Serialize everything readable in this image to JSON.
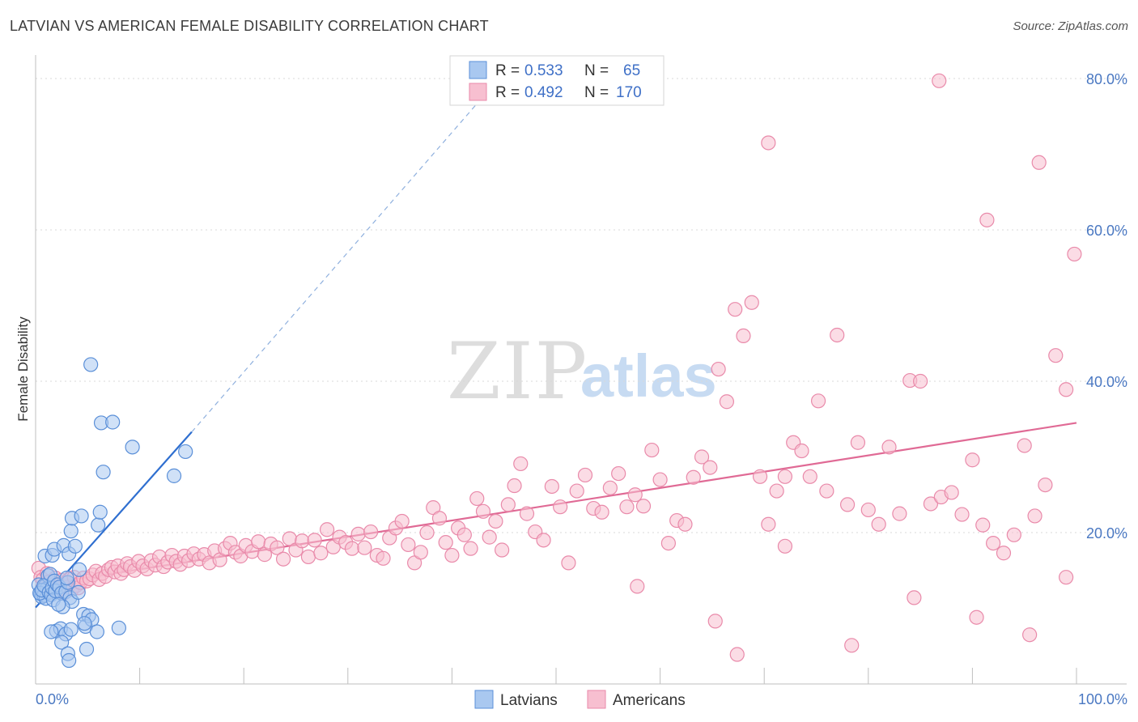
{
  "header": {
    "title": "LATVIAN VS AMERICAN FEMALE DISABILITY CORRELATION CHART",
    "source": "Source: ZipAtlas.com"
  },
  "watermark": {
    "zip": "ZIP",
    "atlas": "atlas"
  },
  "colors": {
    "latvians_fill": "#a9c8f0",
    "latvians_stroke": "#5a8fd8",
    "latvians_line": "#2f6fd0",
    "americans_fill": "#f7bfd0",
    "americans_stroke": "#e98aaa",
    "americans_line": "#e06a95",
    "tick_label": "#4a78c2",
    "grid": "#d8d8d8"
  },
  "legend": {
    "r_label": "R =",
    "n_label": "N =",
    "rows": [
      {
        "r": "0.533",
        "n": "65"
      },
      {
        "r": "0.492",
        "n": "170"
      }
    ]
  },
  "bottom_legend": [
    "Latvians",
    "Americans"
  ],
  "chart_data": {
    "type": "scatter",
    "title": "LATVIAN VS AMERICAN FEMALE DISABILITY CORRELATION CHART",
    "xlabel": "",
    "ylabel": "Female Disability",
    "xlim": [
      0,
      100
    ],
    "ylim": [
      0,
      80
    ],
    "x_tick_labels": [
      "0.0%",
      "100.0%"
    ],
    "y_tick_labels": [
      "20.0%",
      "40.0%",
      "60.0%",
      "80.0%"
    ],
    "y_ticks": [
      20,
      40,
      60,
      80
    ],
    "grid": true,
    "legend_position": "top-center",
    "series": [
      {
        "name": "Latvians",
        "r": 0.533,
        "n": 65,
        "trend": {
          "x": [
            0,
            15
          ],
          "y": [
            10.1,
            33.3
          ],
          "dashed_to": [
            44.5,
            80
          ]
        },
        "points": [
          [
            0.3,
            13.1
          ],
          [
            0.5,
            11.9
          ],
          [
            0.6,
            11.5
          ],
          [
            0.7,
            12.3
          ],
          [
            0.8,
            11.7
          ],
          [
            0.9,
            12.9
          ],
          [
            1.0,
            11.3
          ],
          [
            1.1,
            12.6
          ],
          [
            0.9,
            16.9
          ],
          [
            1.2,
            14.3
          ],
          [
            0.4,
            12.0
          ],
          [
            0.6,
            12.4
          ],
          [
            0.8,
            13.0
          ],
          [
            1.3,
            12.1
          ],
          [
            1.5,
            11.8
          ],
          [
            1.6,
            12.7
          ],
          [
            1.4,
            14.5
          ],
          [
            1.7,
            11.1
          ],
          [
            1.8,
            13.6
          ],
          [
            1.9,
            12.3
          ],
          [
            1.6,
            17.0
          ],
          [
            1.8,
            17.8
          ],
          [
            2.1,
            13.1
          ],
          [
            2.3,
            12.8
          ],
          [
            2.5,
            12.0
          ],
          [
            2.7,
            18.3
          ],
          [
            2.9,
            12.2
          ],
          [
            3.1,
            13.4
          ],
          [
            3.3,
            11.4
          ],
          [
            3.5,
            10.9
          ],
          [
            3.0,
            14.0
          ],
          [
            2.6,
            10.2
          ],
          [
            2.2,
            10.5
          ],
          [
            3.2,
            17.2
          ],
          [
            3.4,
            20.2
          ],
          [
            3.5,
            21.9
          ],
          [
            3.8,
            18.2
          ],
          [
            4.1,
            12.1
          ],
          [
            4.4,
            22.2
          ],
          [
            4.2,
            15.1
          ],
          [
            4.6,
            9.2
          ],
          [
            4.8,
            7.6
          ],
          [
            5.1,
            9.0
          ],
          [
            5.4,
            8.5
          ],
          [
            6.0,
            21.0
          ],
          [
            6.2,
            22.7
          ],
          [
            5.9,
            6.9
          ],
          [
            5.3,
            42.2
          ],
          [
            6.3,
            34.5
          ],
          [
            7.4,
            34.6
          ],
          [
            6.5,
            28.0
          ],
          [
            9.3,
            31.3
          ],
          [
            13.3,
            27.5
          ],
          [
            14.4,
            30.7
          ],
          [
            8.0,
            7.4
          ],
          [
            4.9,
            4.6
          ],
          [
            4.7,
            8.0
          ],
          [
            2.0,
            7.0
          ],
          [
            2.4,
            7.3
          ],
          [
            1.5,
            6.9
          ],
          [
            2.9,
            6.6
          ],
          [
            2.5,
            5.5
          ],
          [
            3.1,
            4.0
          ],
          [
            3.2,
            3.1
          ],
          [
            3.4,
            7.2
          ]
        ]
      },
      {
        "name": "Americans",
        "r": 0.492,
        "n": 170,
        "trend": {
          "x": [
            0,
            100
          ],
          "y": [
            13.0,
            34.5
          ]
        },
        "points": [
          [
            0.3,
            15.3
          ],
          [
            0.5,
            14.1
          ],
          [
            0.7,
            13.8
          ],
          [
            0.9,
            12.9
          ],
          [
            1.1,
            14.6
          ],
          [
            1.3,
            13.5
          ],
          [
            1.5,
            13.1
          ],
          [
            1.7,
            12.6
          ],
          [
            1.9,
            14.0
          ],
          [
            2.1,
            12.3
          ],
          [
            2.3,
            13.2
          ],
          [
            2.5,
            13.7
          ],
          [
            2.7,
            12.0
          ],
          [
            2.9,
            13.4
          ],
          [
            3.1,
            12.8
          ],
          [
            3.3,
            13.9
          ],
          [
            3.5,
            12.5
          ],
          [
            3.7,
            14.1
          ],
          [
            3.9,
            13.0
          ],
          [
            4.1,
            12.7
          ],
          [
            4.3,
            13.4
          ],
          [
            4.6,
            14.0
          ],
          [
            4.9,
            13.6
          ],
          [
            5.2,
            13.9
          ],
          [
            5.5,
            14.4
          ],
          [
            5.8,
            14.9
          ],
          [
            6.1,
            13.8
          ],
          [
            6.4,
            14.6
          ],
          [
            6.7,
            14.2
          ],
          [
            7.0,
            15.1
          ],
          [
            7.3,
            15.4
          ],
          [
            7.6,
            14.8
          ],
          [
            7.9,
            15.6
          ],
          [
            8.2,
            14.6
          ],
          [
            8.5,
            15.1
          ],
          [
            8.8,
            15.9
          ],
          [
            9.1,
            15.5
          ],
          [
            9.5,
            15.0
          ],
          [
            9.9,
            16.2
          ],
          [
            10.3,
            15.6
          ],
          [
            10.7,
            15.2
          ],
          [
            11.1,
            16.3
          ],
          [
            11.5,
            15.7
          ],
          [
            11.9,
            16.8
          ],
          [
            12.3,
            15.5
          ],
          [
            12.7,
            16.1
          ],
          [
            13.1,
            17.0
          ],
          [
            13.5,
            16.2
          ],
          [
            13.9,
            15.8
          ],
          [
            14.3,
            16.9
          ],
          [
            14.7,
            16.3
          ],
          [
            15.2,
            17.2
          ],
          [
            15.7,
            16.5
          ],
          [
            16.2,
            17.1
          ],
          [
            16.7,
            16.0
          ],
          [
            17.2,
            17.6
          ],
          [
            17.7,
            16.4
          ],
          [
            18.2,
            17.9
          ],
          [
            18.7,
            18.6
          ],
          [
            19.2,
            17.4
          ],
          [
            19.7,
            16.9
          ],
          [
            20.2,
            18.3
          ],
          [
            20.8,
            17.5
          ],
          [
            21.4,
            18.8
          ],
          [
            22.0,
            17.1
          ],
          [
            22.6,
            18.5
          ],
          [
            23.2,
            18.0
          ],
          [
            23.8,
            16.5
          ],
          [
            24.4,
            19.2
          ],
          [
            25.0,
            17.7
          ],
          [
            25.6,
            18.9
          ],
          [
            26.2,
            16.8
          ],
          [
            26.8,
            19.0
          ],
          [
            27.4,
            17.3
          ],
          [
            28.0,
            20.4
          ],
          [
            28.6,
            18.1
          ],
          [
            29.2,
            19.4
          ],
          [
            29.8,
            18.7
          ],
          [
            30.4,
            17.9
          ],
          [
            31.0,
            19.8
          ],
          [
            31.6,
            18.0
          ],
          [
            32.2,
            20.1
          ],
          [
            32.8,
            17.0
          ],
          [
            33.4,
            16.6
          ],
          [
            34.0,
            19.3
          ],
          [
            34.6,
            20.6
          ],
          [
            35.2,
            21.5
          ],
          [
            35.8,
            18.4
          ],
          [
            36.4,
            16.0
          ],
          [
            37.0,
            17.4
          ],
          [
            37.6,
            20.0
          ],
          [
            38.2,
            23.3
          ],
          [
            38.8,
            21.9
          ],
          [
            39.4,
            18.7
          ],
          [
            40.0,
            17.0
          ],
          [
            40.6,
            20.6
          ],
          [
            41.2,
            19.7
          ],
          [
            41.8,
            17.9
          ],
          [
            42.4,
            24.5
          ],
          [
            43.0,
            22.8
          ],
          [
            43.6,
            19.4
          ],
          [
            44.2,
            21.5
          ],
          [
            44.8,
            17.7
          ],
          [
            45.4,
            23.7
          ],
          [
            46.0,
            26.2
          ],
          [
            46.6,
            29.1
          ],
          [
            47.2,
            22.5
          ],
          [
            48.0,
            20.1
          ],
          [
            48.8,
            19.0
          ],
          [
            49.6,
            26.1
          ],
          [
            50.4,
            23.4
          ],
          [
            51.2,
            16.0
          ],
          [
            52.0,
            25.5
          ],
          [
            52.8,
            27.6
          ],
          [
            53.6,
            23.2
          ],
          [
            54.4,
            22.7
          ],
          [
            55.2,
            25.9
          ],
          [
            56.0,
            27.8
          ],
          [
            56.8,
            23.4
          ],
          [
            57.6,
            25.0
          ],
          [
            58.4,
            23.5
          ],
          [
            59.2,
            30.9
          ],
          [
            60.0,
            27.0
          ],
          [
            60.8,
            18.6
          ],
          [
            61.6,
            21.6
          ],
          [
            62.4,
            21.1
          ],
          [
            63.2,
            27.3
          ],
          [
            64.0,
            30.0
          ],
          [
            64.8,
            28.6
          ],
          [
            65.6,
            41.6
          ],
          [
            66.4,
            37.3
          ],
          [
            67.2,
            49.5
          ],
          [
            68.0,
            46.0
          ],
          [
            68.8,
            50.4
          ],
          [
            69.6,
            27.4
          ],
          [
            70.4,
            21.1
          ],
          [
            71.2,
            25.5
          ],
          [
            72.0,
            27.4
          ],
          [
            72.8,
            31.9
          ],
          [
            73.6,
            30.8
          ],
          [
            74.4,
            27.4
          ],
          [
            75.2,
            37.4
          ],
          [
            76.0,
            25.5
          ],
          [
            77.0,
            46.1
          ],
          [
            78.0,
            23.7
          ],
          [
            79.0,
            31.9
          ],
          [
            80.0,
            23.0
          ],
          [
            81.0,
            21.1
          ],
          [
            82.0,
            31.3
          ],
          [
            83.0,
            22.5
          ],
          [
            84.0,
            40.1
          ],
          [
            85.0,
            40.0
          ],
          [
            86.0,
            23.8
          ],
          [
            87.0,
            24.7
          ],
          [
            88.0,
            25.3
          ],
          [
            89.0,
            22.4
          ],
          [
            90.0,
            29.6
          ],
          [
            91.0,
            21.0
          ],
          [
            92.0,
            18.6
          ],
          [
            93.0,
            17.3
          ],
          [
            94.0,
            19.7
          ],
          [
            95.0,
            31.5
          ],
          [
            96.0,
            22.2
          ],
          [
            97.0,
            26.3
          ],
          [
            98.0,
            43.4
          ],
          [
            99.0,
            38.9
          ],
          [
            91.4,
            61.3
          ],
          [
            96.4,
            68.9
          ],
          [
            99.8,
            56.8
          ],
          [
            70.4,
            71.5
          ],
          [
            86.8,
            79.7
          ],
          [
            72.0,
            18.2
          ],
          [
            57.8,
            12.9
          ],
          [
            67.4,
            3.9
          ],
          [
            78.4,
            5.1
          ],
          [
            84.4,
            11.4
          ],
          [
            90.4,
            8.8
          ],
          [
            95.5,
            6.5
          ],
          [
            99.0,
            14.1
          ],
          [
            65.3,
            8.3
          ]
        ]
      }
    ]
  }
}
